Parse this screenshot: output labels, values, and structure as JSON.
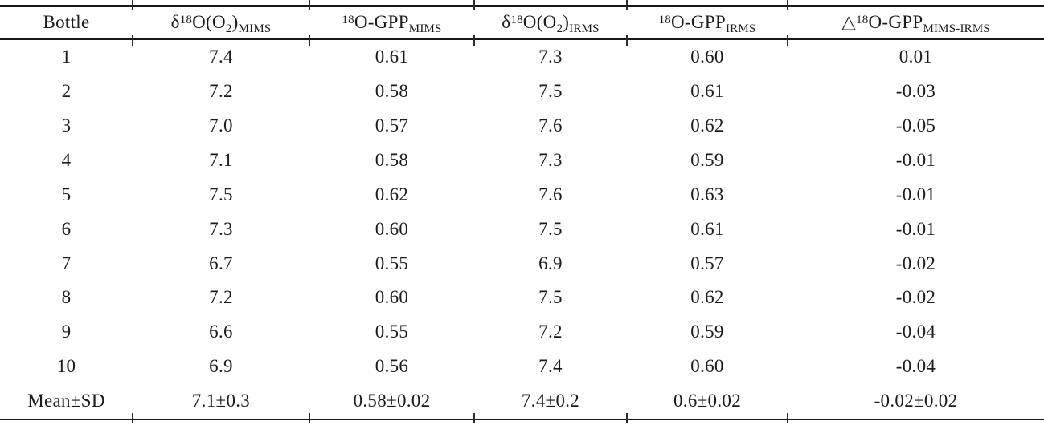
{
  "table": {
    "colors": {
      "text": "#1b1b1b",
      "line": "#161616",
      "background": "#ffffff"
    },
    "columns": [
      {
        "key": "bottle",
        "label_segments": [
          {
            "text": "Bottle"
          }
        ]
      },
      {
        "key": "d18o-o2-mims",
        "label_segments": [
          {
            "text": "δ"
          },
          {
            "text": "18",
            "style": "sup"
          },
          {
            "text": "O(O"
          },
          {
            "text": "2",
            "style": "sub"
          },
          {
            "text": ")"
          },
          {
            "text": "MIMS",
            "style": "sub"
          }
        ]
      },
      {
        "key": "18o-gpp-mims",
        "label_segments": [
          {
            "text": "18",
            "style": "sup"
          },
          {
            "text": "O-GPP"
          },
          {
            "text": "MIMS",
            "style": "sub"
          }
        ]
      },
      {
        "key": "d18o-o2-irms",
        "label_segments": [
          {
            "text": "δ"
          },
          {
            "text": "18",
            "style": "sup"
          },
          {
            "text": "O(O"
          },
          {
            "text": "2",
            "style": "sub"
          },
          {
            "text": ")"
          },
          {
            "text": "IRMS",
            "style": "sub"
          }
        ]
      },
      {
        "key": "18o-gpp-irms",
        "label_segments": [
          {
            "text": "18",
            "style": "sup"
          },
          {
            "text": "O-GPP"
          },
          {
            "text": "IRMS",
            "style": "sub"
          }
        ]
      },
      {
        "key": "delta-18o-gpp-mims-irms",
        "label_segments": [
          {
            "text": "△"
          },
          {
            "text": "18",
            "style": "sup"
          },
          {
            "text": "O-GPP"
          },
          {
            "text": "MIMS-IRMS",
            "style": "sub"
          }
        ]
      }
    ],
    "rows": [
      [
        "1",
        "7.4",
        "0.61",
        "7.3",
        "0.60",
        "0.01"
      ],
      [
        "2",
        "7.2",
        "0.58",
        "7.5",
        "0.61",
        "-0.03"
      ],
      [
        "3",
        "7.0",
        "0.57",
        "7.6",
        "0.62",
        "-0.05"
      ],
      [
        "4",
        "7.1",
        "0.58",
        "7.3",
        "0.59",
        "-0.01"
      ],
      [
        "5",
        "7.5",
        "0.62",
        "7.6",
        "0.63",
        "-0.01"
      ],
      [
        "6",
        "7.3",
        "0.60",
        "7.5",
        "0.61",
        "-0.01"
      ],
      [
        "7",
        "6.7",
        "0.55",
        "6.9",
        "0.57",
        "-0.02"
      ],
      [
        "8",
        "7.2",
        "0.60",
        "7.5",
        "0.62",
        "-0.02"
      ],
      [
        "9",
        "6.6",
        "0.55",
        "7.2",
        "0.59",
        "-0.04"
      ],
      [
        "10",
        "6.9",
        "0.56",
        "7.4",
        "0.60",
        "-0.04"
      ]
    ],
    "summary_row": [
      "Mean±SD",
      "7.1±0.3",
      "0.58±0.02",
      "7.4±0.2",
      "0.6±0.02",
      "-0.02±0.02"
    ]
  }
}
